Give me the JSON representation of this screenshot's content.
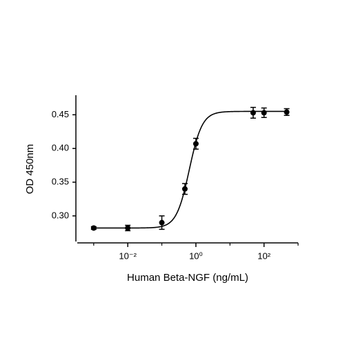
{
  "chart_data": {
    "type": "scatter",
    "xlabel": "Human Beta-NGF (ng/mL)",
    "ylabel": "OD 450nm",
    "xscale": "log",
    "x": [
      0.001,
      0.01,
      0.1,
      0.475,
      1,
      48,
      100,
      464
    ],
    "series": [
      {
        "color": "#000000",
        "values": [
          0.282,
          0.282,
          0.29,
          0.34,
          0.407,
          0.453,
          0.453,
          0.454
        ],
        "errors": [
          0.002,
          0.004,
          0.01,
          0.008,
          0.008,
          0.008,
          0.007,
          0.005
        ]
      }
    ],
    "fit": {
      "bottom": 0.282,
      "top": 0.455,
      "ec50": 0.64,
      "hill": 2.29
    },
    "xlim": [
      0.0003,
      1000
    ],
    "ylim": [
      0.262,
      0.479
    ],
    "xticks": [
      {
        "value": 0.01,
        "label": "10⁻²"
      },
      {
        "value": 1,
        "label": "10⁰"
      },
      {
        "value": 100,
        "label": "10²"
      }
    ],
    "xminorticks": [
      0.001,
      0.1,
      10,
      1000
    ],
    "yticks": [
      {
        "value": 0.3,
        "label": "0.30"
      },
      0.35,
      {
        "value": 0.4,
        "label": "0.40"
      },
      0.45
    ]
  }
}
